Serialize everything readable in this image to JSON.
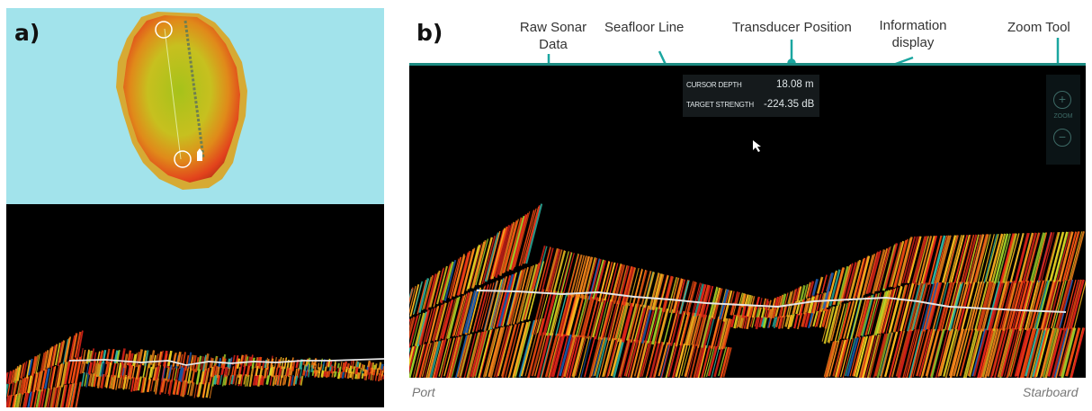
{
  "panels": {
    "a_label": "a)",
    "b_label": "b)"
  },
  "callouts": {
    "raw_sonar_data": "Raw Sonar\nData",
    "seafloor_line": "Seafloor Line",
    "transducer_position": "Transducer Position",
    "information_display": "Information\ndisplay",
    "zoom_tool": "Zoom Tool"
  },
  "info_display": {
    "cursor_depth_label": "CURSOR DEPTH",
    "cursor_depth_value": "18.08 m",
    "target_strength_label": "TARGET STRENGTH",
    "target_strength_value": "-224.35 dB"
  },
  "zoom": {
    "in_symbol": "+",
    "label": "ZOOM",
    "out_symbol": "−"
  },
  "sides": {
    "left": "Port",
    "right": "Starboard"
  },
  "colors": {
    "accent": "#1aa6a0",
    "map_background": "#a2e3eb",
    "sonar_background": "#000000"
  },
  "icons": {
    "zoom_in": "plus-icon",
    "zoom_out": "minus-icon",
    "cursor": "arrow-cursor-icon",
    "boat": "boat-icon"
  }
}
